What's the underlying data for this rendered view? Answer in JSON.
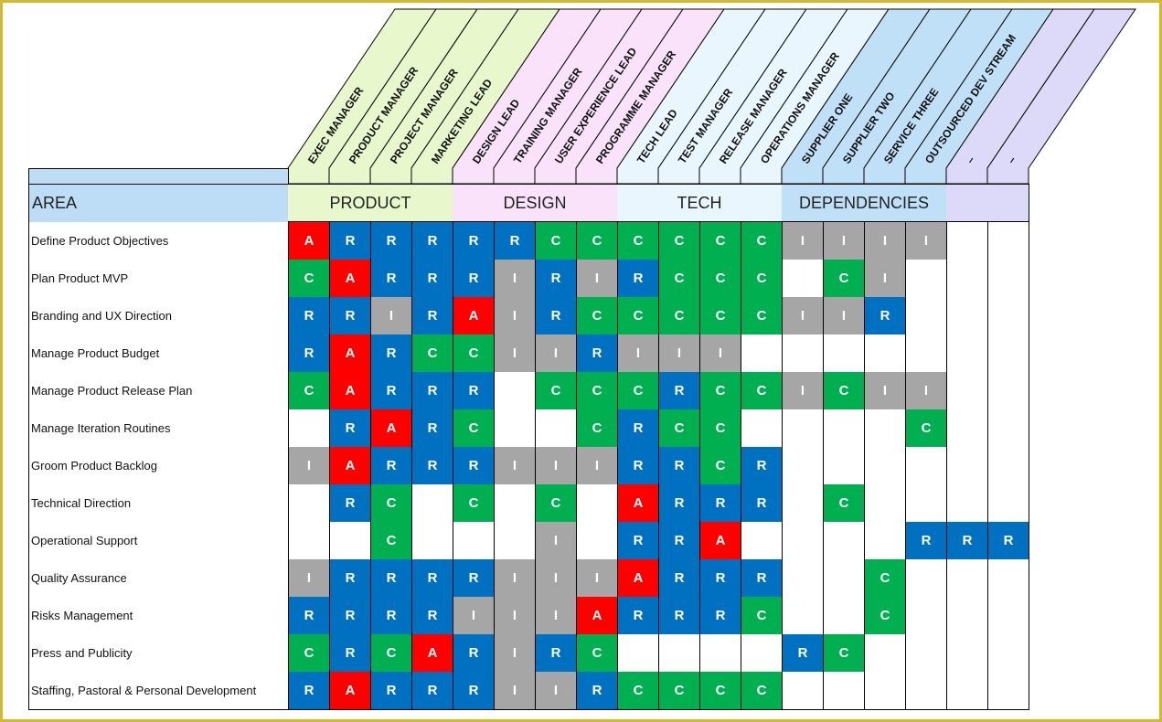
{
  "area_label": "AREA",
  "colors": {
    "A": "#ff0000",
    "R": "#0070c0",
    "C": "#00b050",
    "I": "#a6a6a6",
    "frame": "#d4b830"
  },
  "groups": [
    {
      "label": "PRODUCT",
      "span": 4,
      "color": "#e8f8cc"
    },
    {
      "label": "DESIGN",
      "span": 4,
      "color": "#fae2fa"
    },
    {
      "label": "TECH",
      "span": 4,
      "color": "#e9f6fd"
    },
    {
      "label": "DEPENDENCIES",
      "span": 4,
      "color": "#bfe0f7"
    },
    {
      "label": "",
      "span": 2,
      "color": "#ddd9f8"
    }
  ],
  "roles": [
    "EXEC MANAGER",
    "PRODUCT MANAGER",
    "PROJECT MANAGER",
    "MARKETING LEAD",
    "DESIGN LEAD",
    "TRAINING MANAGER",
    "USER EXPERIENCE LEAD",
    "PROGRAMME MANAGER",
    "TECH LEAD",
    "TEST MANAGER",
    "RELEASE MANAGER",
    "OPERATIONS MANAGER",
    "SUPPLIER ONE",
    "SUPPLIER TWO",
    "SERVICE THREE",
    "OUTSOURCED DEV STREAM",
    "–",
    "–"
  ],
  "rows": [
    {
      "area": "Define Product Objectives",
      "cells": [
        "A",
        "R",
        "R",
        "R",
        "R",
        "R",
        "C",
        "C",
        "C",
        "C",
        "C",
        "C",
        "I",
        "I",
        "I",
        "I",
        "",
        ""
      ]
    },
    {
      "area": "Plan Product MVP",
      "cells": [
        "C",
        "A",
        "R",
        "R",
        "R",
        "I",
        "R",
        "I",
        "R",
        "C",
        "C",
        "C",
        "",
        "C",
        "I",
        "",
        "",
        ""
      ]
    },
    {
      "area": "Branding and UX Direction",
      "cells": [
        "R",
        "R",
        "I",
        "R",
        "A",
        "I",
        "R",
        "C",
        "C",
        "C",
        "C",
        "C",
        "I",
        "I",
        "R",
        "",
        "",
        ""
      ]
    },
    {
      "area": "Manage Product Budget",
      "cells": [
        "R",
        "A",
        "R",
        "C",
        "C",
        "I",
        "I",
        "R",
        "I",
        "I",
        "I",
        "",
        "",
        "",
        "",
        "",
        "",
        ""
      ]
    },
    {
      "area": "Manage Product Release Plan",
      "cells": [
        "C",
        "A",
        "R",
        "R",
        "R",
        "",
        "C",
        "C",
        "C",
        "R",
        "C",
        "C",
        "I",
        "C",
        "I",
        "I",
        "",
        ""
      ]
    },
    {
      "area": "Manage Iteration Routines",
      "cells": [
        "",
        "R",
        "A",
        "R",
        "C",
        "",
        "",
        "C",
        "R",
        "C",
        "C",
        "",
        "",
        "",
        "",
        "C",
        "",
        ""
      ]
    },
    {
      "area": "Groom Product Backlog",
      "cells": [
        "I",
        "A",
        "R",
        "R",
        "R",
        "I",
        "I",
        "I",
        "R",
        "R",
        "C",
        "R",
        "",
        "",
        "",
        "",
        "",
        ""
      ]
    },
    {
      "area": "Technical Direction",
      "cells": [
        "",
        "R",
        "C",
        "",
        "C",
        "",
        "C",
        "",
        "A",
        "R",
        "R",
        "R",
        "",
        "C",
        "",
        "",
        "",
        ""
      ]
    },
    {
      "area": "Operational Support",
      "cells": [
        "",
        "",
        "C",
        "",
        "",
        "",
        "I",
        "",
        "R",
        "R",
        "A",
        "",
        "",
        "",
        "",
        "R",
        "R",
        "R"
      ]
    },
    {
      "area": "Quality Assurance",
      "cells": [
        "I",
        "R",
        "R",
        "R",
        "R",
        "I",
        "I",
        "I",
        "A",
        "R",
        "R",
        "R",
        "",
        "",
        "C",
        "",
        "",
        ""
      ]
    },
    {
      "area": "Risks Management",
      "cells": [
        "R",
        "R",
        "R",
        "R",
        "I",
        "I",
        "I",
        "A",
        "R",
        "R",
        "R",
        "C",
        "",
        "",
        "C",
        "",
        "",
        ""
      ]
    },
    {
      "area": "Press and Publicity",
      "cells": [
        "C",
        "R",
        "C",
        "A",
        "R",
        "I",
        "R",
        "C",
        "",
        "",
        "",
        "",
        "R",
        "C",
        "",
        "",
        "",
        ""
      ]
    },
    {
      "area": "Staffing, Pastoral & Personal Development",
      "cells": [
        "R",
        "A",
        "R",
        "R",
        "R",
        "I",
        "I",
        "R",
        "C",
        "C",
        "C",
        "C",
        "",
        "",
        "",
        "",
        "",
        ""
      ]
    }
  ]
}
